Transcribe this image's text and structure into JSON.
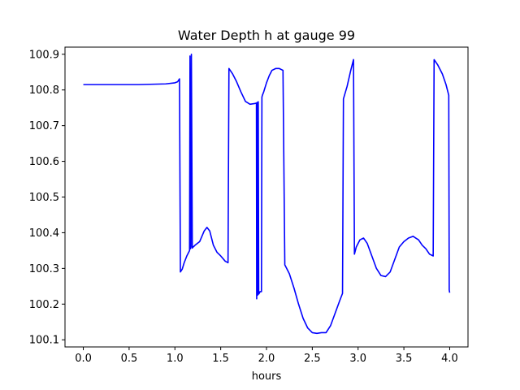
{
  "chart_data": {
    "type": "line",
    "title": "Water Depth h at gauge 99",
    "xlabel": "hours",
    "ylabel": "",
    "xlim": [
      -0.2,
      4.2
    ],
    "ylim": [
      100.08,
      100.92
    ],
    "xticks": [
      0.0,
      0.5,
      1.0,
      1.5,
      2.0,
      2.5,
      3.0,
      3.5,
      4.0
    ],
    "xtick_labels": [
      "0.0",
      "0.5",
      "1.0",
      "1.5",
      "2.0",
      "2.5",
      "3.0",
      "3.5",
      "4.0"
    ],
    "yticks": [
      100.1,
      100.2,
      100.3,
      100.4,
      100.5,
      100.6,
      100.7,
      100.8,
      100.9
    ],
    "ytick_labels": [
      "100.1",
      "100.2",
      "100.3",
      "100.4",
      "100.5",
      "100.6",
      "100.7",
      "100.8",
      "100.9"
    ],
    "grid": false,
    "series": [
      {
        "color": "#0000ff",
        "x": [
          0.0,
          0.3,
          0.6,
          0.9,
          1.0,
          1.03,
          1.05,
          1.06,
          1.08,
          1.1,
          1.13,
          1.16,
          1.165,
          1.17,
          1.175,
          1.18,
          1.19,
          1.195,
          1.2,
          1.22,
          1.27,
          1.32,
          1.35,
          1.38,
          1.42,
          1.46,
          1.5,
          1.55,
          1.58,
          1.59,
          1.63,
          1.67,
          1.72,
          1.77,
          1.82,
          1.87,
          1.89,
          1.893,
          1.897,
          1.9,
          1.903,
          1.91,
          1.915,
          1.92,
          1.93,
          1.945,
          1.95,
          1.955,
          1.97,
          2.0,
          2.03,
          2.06,
          2.1,
          2.14,
          2.18,
          2.2,
          2.21,
          2.25,
          2.3,
          2.35,
          2.4,
          2.45,
          2.5,
          2.55,
          2.6,
          2.65,
          2.7,
          2.75,
          2.8,
          2.83,
          2.84,
          2.88,
          2.92,
          2.95,
          2.96,
          2.98,
          3.02,
          3.06,
          3.1,
          3.15,
          3.2,
          3.25,
          3.3,
          3.35,
          3.4,
          3.45,
          3.5,
          3.55,
          3.6,
          3.63,
          3.66,
          3.7,
          3.74,
          3.78,
          3.82,
          3.83,
          3.87,
          3.92,
          3.96,
          3.99,
          3.995,
          4.0
        ],
        "values": [
          100.815,
          100.815,
          100.815,
          100.817,
          100.82,
          100.823,
          100.831,
          100.29,
          100.298,
          100.315,
          100.335,
          100.35,
          100.895,
          100.355,
          100.36,
          100.9,
          100.357,
          100.36,
          100.36,
          100.365,
          100.375,
          100.405,
          100.415,
          100.405,
          100.365,
          100.345,
          100.335,
          100.32,
          100.316,
          100.86,
          100.845,
          100.825,
          100.795,
          100.768,
          100.76,
          100.762,
          100.763,
          100.215,
          100.765,
          100.225,
          100.225,
          100.767,
          100.228,
          100.23,
          100.235,
          100.235,
          100.78,
          100.785,
          100.795,
          100.82,
          100.84,
          100.855,
          100.86,
          100.86,
          100.855,
          100.31,
          100.305,
          100.285,
          100.245,
          100.2,
          100.16,
          100.133,
          100.12,
          100.118,
          100.12,
          100.12,
          100.14,
          100.175,
          100.21,
          100.23,
          100.775,
          100.81,
          100.855,
          100.885,
          100.34,
          100.36,
          100.38,
          100.385,
          100.37,
          100.335,
          100.3,
          100.28,
          100.277,
          100.29,
          100.325,
          100.36,
          100.375,
          100.385,
          100.39,
          100.385,
          100.38,
          100.365,
          100.355,
          100.34,
          100.335,
          100.885,
          100.87,
          100.845,
          100.815,
          100.785,
          100.24,
          100.232
        ]
      }
    ]
  }
}
